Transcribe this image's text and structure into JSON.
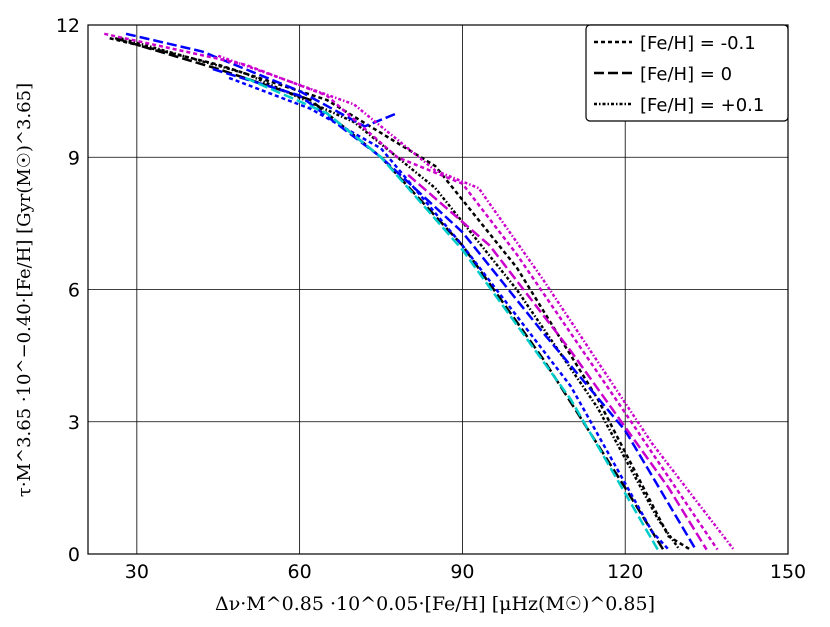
{
  "chart_data": {
    "type": "line",
    "xlabel": "Δν·M^0.85 ·10^0.05·[Fe/H] [μHz(M☉)^0.85]",
    "ylabel": "τ·M^3.65 ·10^−0.40·[Fe/H] [Gyr(M☉)^3.65]",
    "xlim": [
      21,
      150
    ],
    "ylim": [
      0,
      12
    ],
    "xticks": [
      "30",
      "60",
      "90",
      "120",
      "150"
    ],
    "yticks": [
      "0",
      "3",
      "6",
      "9",
      "12"
    ],
    "grid": true,
    "legend_position": "top-right",
    "legend": [
      {
        "label": "[Fe/H] = -0.1",
        "style": "dotted"
      },
      {
        "label": "[Fe/H] = 0",
        "style": "dashed"
      },
      {
        "label": "[Fe/H] = +0.1",
        "style": "dashdotdot"
      }
    ],
    "series": [
      {
        "color": "#000000",
        "style": "dotted",
        "points": [
          [
            25,
            11.7
          ],
          [
            45,
            11.1
          ],
          [
            65,
            10.3
          ],
          [
            85,
            8.8
          ],
          [
            100,
            6.5
          ],
          [
            115,
            3.5
          ],
          [
            128,
            0.4
          ],
          [
            132,
            0.1
          ]
        ]
      },
      {
        "color": "#000000",
        "style": "dashed",
        "points": [
          [
            26,
            11.7
          ],
          [
            45,
            11.0
          ],
          [
            62,
            10.3
          ],
          [
            75,
            9.0
          ],
          [
            90,
            7.0
          ],
          [
            105,
            4.4
          ],
          [
            120,
            1.5
          ],
          [
            127,
            0.1
          ]
        ]
      },
      {
        "color": "#000000",
        "style": "dashdotdot",
        "points": [
          [
            27,
            11.7
          ],
          [
            50,
            10.9
          ],
          [
            70,
            9.8
          ],
          [
            85,
            8.3
          ],
          [
            100,
            6.0
          ],
          [
            115,
            3.3
          ],
          [
            126,
            0.8
          ],
          [
            130,
            0.1
          ]
        ]
      },
      {
        "color": "#0000ff",
        "style": "dashed",
        "points": [
          [
            28,
            11.8
          ],
          [
            42,
            11.4
          ],
          [
            60,
            10.5
          ],
          [
            72,
            9.7
          ],
          [
            78,
            10.0
          ]
        ]
      },
      {
        "color": "#0000ff",
        "style": "dotted",
        "points": [
          [
            47,
            10.8
          ],
          [
            62,
            10.1
          ],
          [
            75,
            9.2
          ],
          [
            90,
            7.0
          ],
          [
            110,
            3.8
          ],
          [
            125,
            0.5
          ],
          [
            128,
            0.1
          ]
        ]
      },
      {
        "color": "#0000ff",
        "style": "dashed",
        "points": [
          [
            44,
            11.0
          ],
          [
            60,
            10.4
          ],
          [
            75,
            9.0
          ],
          [
            90,
            7.3
          ],
          [
            105,
            5.0
          ],
          [
            120,
            2.8
          ],
          [
            133,
            0.1
          ]
        ]
      },
      {
        "color": "#00cccc",
        "style": "dashed",
        "points": [
          [
            50,
            10.8
          ],
          [
            65,
            10.0
          ],
          [
            75,
            9.0
          ],
          [
            90,
            6.9
          ],
          [
            110,
            3.5
          ],
          [
            126,
            0.1
          ]
        ]
      },
      {
        "color": "#cc00cc",
        "style": "dotted",
        "points": [
          [
            24,
            11.8
          ],
          [
            50,
            11.1
          ],
          [
            65,
            10.4
          ],
          [
            78,
            9.0
          ],
          [
            90,
            8.4
          ],
          [
            100,
            6.8
          ],
          [
            120,
            3.2
          ],
          [
            137,
            0.1
          ]
        ]
      },
      {
        "color": "#cc00cc",
        "style": "dashed",
        "points": [
          [
            80,
            8.6
          ],
          [
            95,
            7.0
          ],
          [
            110,
            4.6
          ],
          [
            128,
            1.5
          ],
          [
            135,
            0.1
          ]
        ]
      },
      {
        "color": "#cc00cc",
        "style": "dashdotdot",
        "points": [
          [
            45,
            11.3
          ],
          [
            70,
            10.2
          ],
          [
            85,
            8.7
          ],
          [
            93,
            8.3
          ],
          [
            105,
            6.2
          ],
          [
            125,
            2.5
          ],
          [
            140,
            0.1
          ]
        ]
      }
    ]
  }
}
